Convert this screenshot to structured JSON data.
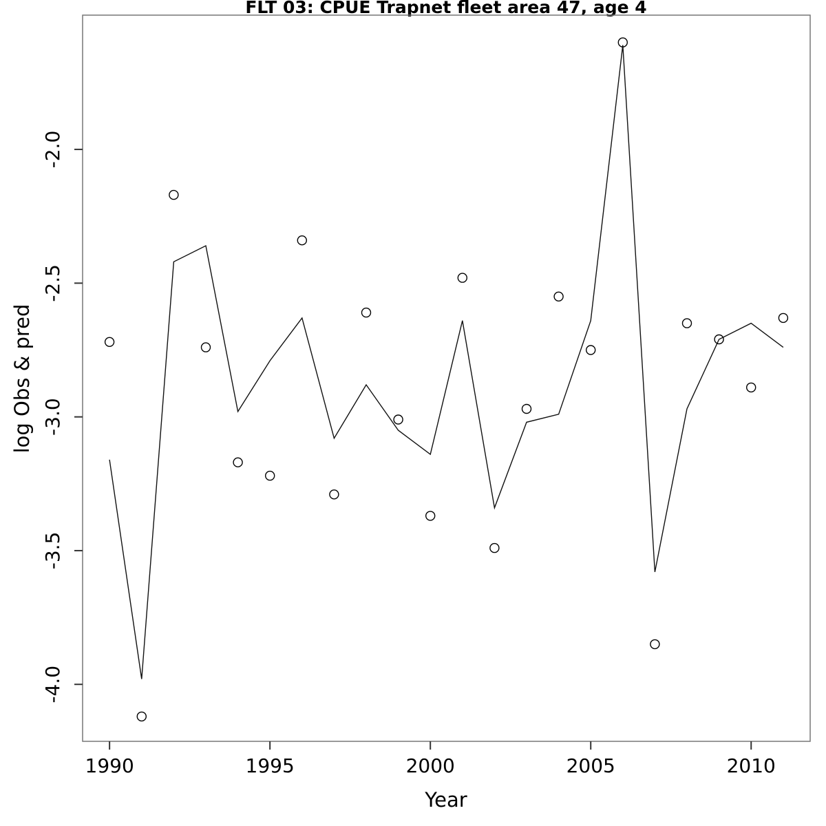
{
  "figure": {
    "background": "#ffffff"
  },
  "chart_data": {
    "type": "line",
    "title": "FLT 03: CPUE Trapnet fleet area 47, age 4",
    "xlabel": "Year",
    "ylabel": "log Obs & pred",
    "x": [
      1990,
      1991,
      1992,
      1993,
      1994,
      1995,
      1996,
      1997,
      1998,
      1999,
      2000,
      2001,
      2002,
      2003,
      2004,
      2005,
      2006,
      2007,
      2008,
      2009,
      2010,
      2011
    ],
    "series": [
      {
        "name": "observed",
        "style": "scatter",
        "marker": "open-circle",
        "color": "#000000",
        "values": [
          -2.72,
          -4.12,
          -2.17,
          -2.74,
          -3.17,
          -3.22,
          -2.34,
          -3.29,
          -2.61,
          -3.01,
          -3.37,
          -2.48,
          -3.49,
          -2.97,
          -2.55,
          -2.75,
          -1.6,
          -3.85,
          -2.65,
          -2.71,
          -2.89,
          -2.63
        ]
      },
      {
        "name": "predicted",
        "style": "line",
        "color": "#111111",
        "values": [
          -3.16,
          -3.98,
          -2.42,
          -2.36,
          -2.98,
          -2.79,
          -2.63,
          -3.08,
          -2.88,
          -3.05,
          -3.14,
          -2.64,
          -3.34,
          -3.02,
          -2.99,
          -2.64,
          -1.61,
          -3.58,
          -2.97,
          -2.71,
          -2.65,
          -2.74
        ]
      }
    ],
    "xticks": [
      {
        "value": 1990,
        "label": "1990"
      },
      {
        "value": 1995,
        "label": "1995"
      },
      {
        "value": 2000,
        "label": "2000"
      },
      {
        "value": 2005,
        "label": "2005"
      },
      {
        "value": 2010,
        "label": "2010"
      }
    ],
    "yticks": [
      {
        "value": -2.0,
        "label": "-2.0"
      },
      {
        "value": -2.5,
        "label": "-2.5"
      },
      {
        "value": -3.0,
        "label": "-3.0"
      },
      {
        "value": -3.5,
        "label": "-3.5"
      },
      {
        "value": -4.0,
        "label": "-4.0"
      }
    ],
    "xlim": [
      1989.16,
      2011.84
    ],
    "ylim": [
      -4.213,
      -1.498
    ],
    "grid": false,
    "legend": null
  }
}
